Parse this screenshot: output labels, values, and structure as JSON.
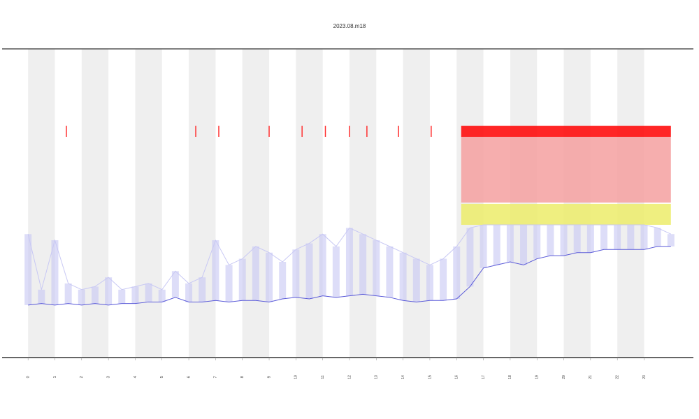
{
  "chart_data": {
    "type": "line",
    "title": "2023.08.m18",
    "x": [
      0,
      0.5,
      1,
      1.5,
      2,
      2.5,
      3,
      3.5,
      4,
      4.5,
      5,
      5.5,
      6,
      6.5,
      7,
      7.5,
      8,
      8.5,
      9,
      9.5,
      10,
      10.5,
      11,
      11.5,
      12,
      12.5,
      13,
      13.5,
      14,
      14.5,
      15,
      15.5,
      16,
      16.5,
      17,
      17.5,
      18,
      18.5,
      19,
      19.5,
      20,
      20.5,
      21,
      21.5,
      22,
      22.5,
      23,
      23.5,
      24
    ],
    "series": [
      {
        "color": "#5a5ad8",
        "values": [
          17,
          17.5,
          17,
          17.5,
          17,
          17.5,
          17,
          17.5,
          17.5,
          18,
          18,
          19.5,
          18,
          18,
          18.5,
          18,
          18.5,
          18.5,
          18,
          19,
          19.5,
          19,
          20,
          19.5,
          20,
          20.5,
          20,
          19.5,
          18.5,
          18,
          18.5,
          18.5,
          19,
          23,
          29,
          30,
          31,
          30,
          32,
          33,
          33,
          34,
          34,
          35,
          35,
          35,
          35,
          36,
          36
        ]
      },
      {
        "color": "#c8c8f4",
        "values": [
          40,
          22,
          38,
          24,
          22,
          23,
          26,
          22,
          23,
          24,
          22,
          28,
          24,
          26,
          38,
          30,
          32,
          36,
          34,
          31,
          35,
          37,
          40,
          36,
          42,
          40,
          38,
          36,
          34,
          32,
          30,
          32,
          36,
          42,
          43,
          43,
          43,
          43,
          43,
          43,
          43,
          43,
          43,
          43,
          43,
          43,
          43,
          42,
          40
        ]
      }
    ],
    "shading": [
      [
        0,
        1
      ],
      [
        2,
        3
      ],
      [
        4,
        5
      ],
      [
        6,
        7
      ],
      [
        8,
        9
      ],
      [
        10,
        11
      ],
      [
        12,
        13
      ],
      [
        14,
        15
      ],
      [
        16,
        17
      ],
      [
        18,
        19
      ],
      [
        20,
        21
      ],
      [
        22,
        23
      ]
    ],
    "shading_color": "#efefef",
    "bands": [
      {
        "from": 16.17,
        "to": 24,
        "lo": 71.5,
        "hi": 75.1,
        "color": "#ff0000"
      },
      {
        "from": 16.17,
        "to": 24,
        "lo": 50.2,
        "hi": 71.5,
        "color": "#f4a0a0"
      },
      {
        "from": 16.17,
        "to": 24,
        "lo": 43,
        "hi": 49.8,
        "color": "#ecec6a"
      }
    ],
    "marks": {
      "x": [
        1.43,
        6.26,
        7.12,
        9.0,
        10.23,
        11.1,
        12.0,
        12.65,
        13.83,
        15.05
      ],
      "lo": 71.5,
      "hi": 75.1,
      "color": "#ff3030"
    },
    "xlim": [
      -0.97,
      24.84
    ],
    "ylim": [
      0,
      100
    ],
    "xticks": [
      0,
      1,
      2,
      3,
      4,
      5,
      6,
      7,
      8,
      9,
      10,
      11,
      12,
      13,
      14,
      15,
      16,
      17,
      18,
      19,
      20,
      21,
      22,
      23
    ]
  }
}
